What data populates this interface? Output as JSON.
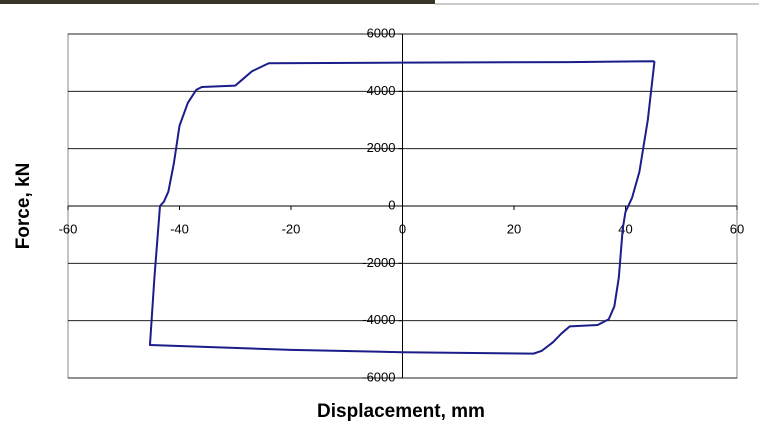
{
  "chart_data": {
    "type": "line",
    "xlabel": "Displacement, mm",
    "ylabel": "Force, kN",
    "x": [
      45.2,
      44,
      42.5,
      41.2,
      40.5,
      40,
      39.5,
      38.8,
      38,
      37,
      35,
      30,
      28.5,
      27,
      25,
      23.5,
      0,
      -20,
      -45.3,
      -44.5,
      -43.5,
      -42.8,
      -42,
      -41,
      -40,
      -38.5,
      -37,
      -36,
      -30,
      -28.5,
      -27,
      -24,
      0,
      30,
      45.2
    ],
    "series": [
      {
        "color": "#1c1c8a",
        "values": [
          5050,
          3000,
          1200,
          300,
          0,
          -200,
          -800,
          -2500,
          -3500,
          -3950,
          -4150,
          -4200,
          -4450,
          -4750,
          -5050,
          -5150,
          -5100,
          -5020,
          -4850,
          -2500,
          0,
          150,
          500,
          1500,
          2800,
          3600,
          4050,
          4150,
          4200,
          4450,
          4700,
          4980,
          5000,
          5020,
          5050
        ]
      }
    ],
    "xlim": [
      -60,
      60
    ],
    "xticks": [
      -60,
      -40,
      -20,
      0,
      20,
      40,
      60
    ],
    "ylim": [
      -6000,
      6000
    ],
    "yticks": [
      -6000,
      -4000,
      -2000,
      0,
      2000,
      4000,
      6000
    ],
    "grid": true
  }
}
